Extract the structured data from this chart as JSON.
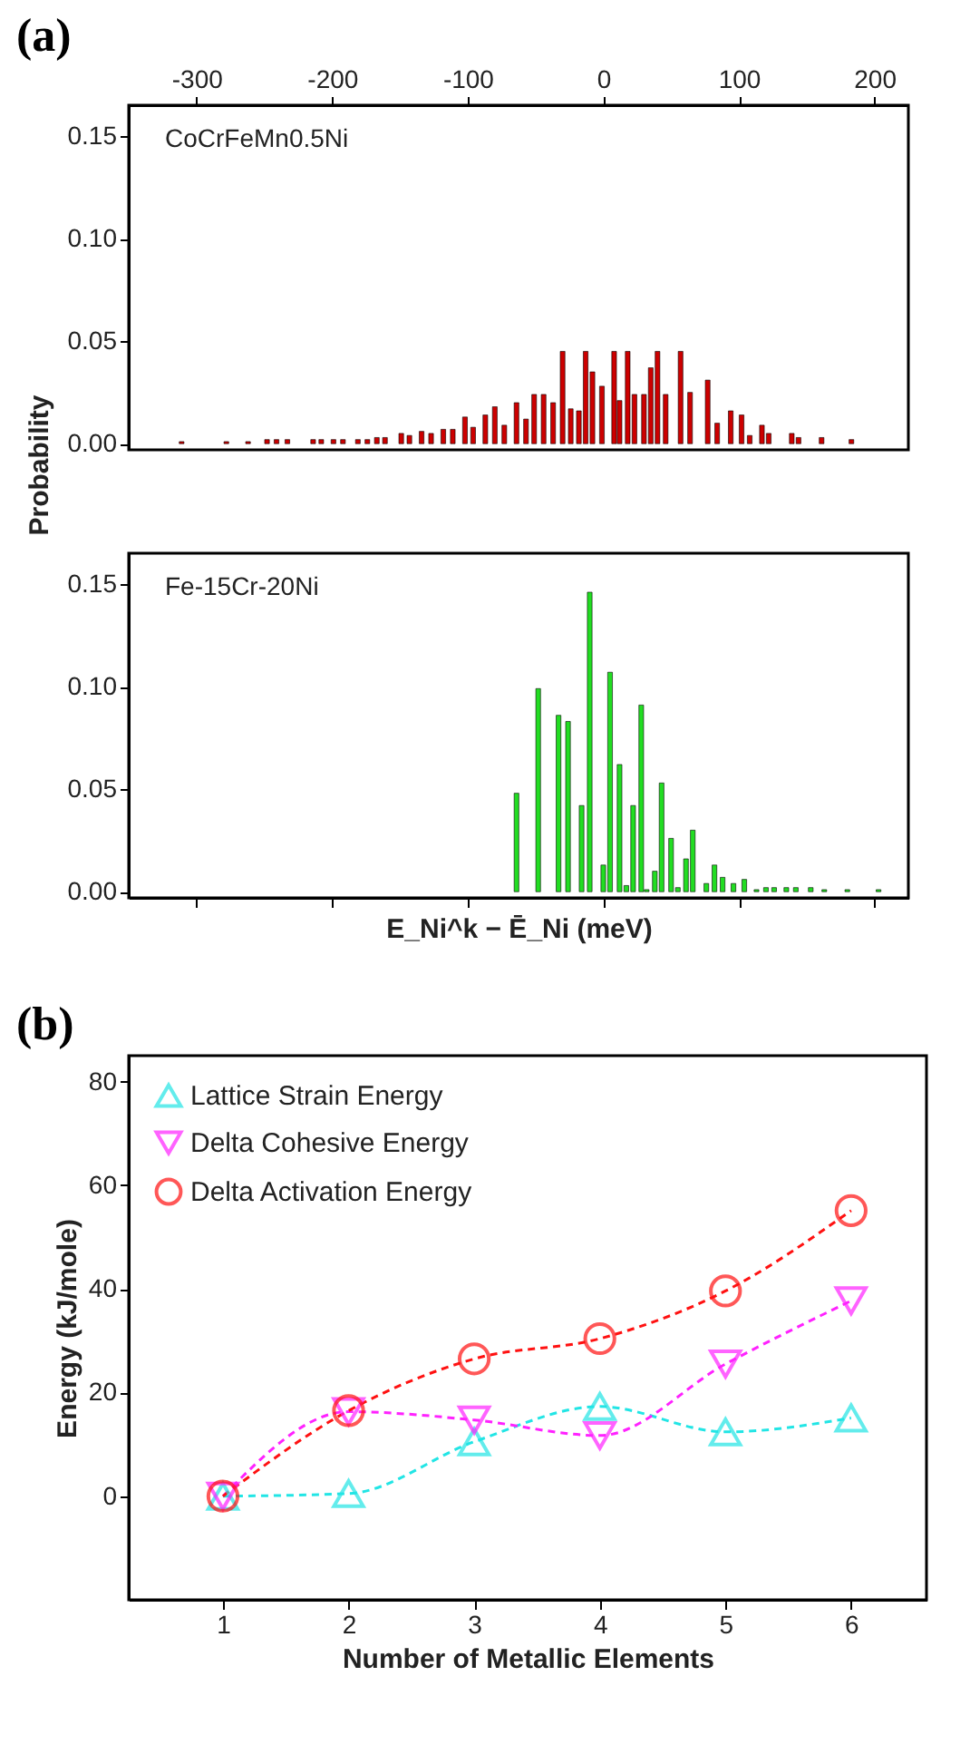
{
  "chart_data": [
    {
      "type": "bar",
      "title": "(a)",
      "ylabel": "Probability",
      "annotations": [
        "CoCrFeMn0.5Ni"
      ],
      "color": "#cc0000",
      "x": [
        -311,
        -278,
        -262,
        -248,
        -241,
        -233,
        -214,
        -208,
        -199,
        -192,
        -181,
        -174,
        -167,
        -161,
        -149,
        -143,
        -134,
        -127,
        -118,
        -111,
        -102,
        -96,
        -87,
        -80,
        -73,
        -64,
        -57,
        -51,
        -44,
        -37,
        -30,
        -24,
        -18,
        -13,
        -8,
        -1,
        8,
        12,
        18,
        23,
        30,
        35,
        40,
        46,
        57,
        64,
        77,
        84,
        94,
        102,
        108,
        117,
        122,
        139,
        144,
        161,
        183
      ],
      "values": [
        0.001,
        0.001,
        0.001,
        0.002,
        0.002,
        0.002,
        0.002,
        0.002,
        0.002,
        0.002,
        0.002,
        0.002,
        0.003,
        0.003,
        0.005,
        0.004,
        0.006,
        0.005,
        0.007,
        0.007,
        0.013,
        0.008,
        0.014,
        0.018,
        0.009,
        0.02,
        0.012,
        0.024,
        0.024,
        0.02,
        0.045,
        0.017,
        0.016,
        0.045,
        0.035,
        0.028,
        0.045,
        0.021,
        0.045,
        0.024,
        0.024,
        0.037,
        0.045,
        0.024,
        0.045,
        0.025,
        0.031,
        0.01,
        0.016,
        0.014,
        0.004,
        0.009,
        0.005,
        0.005,
        0.003,
        0.003,
        0.002
      ],
      "xlim": [
        -350,
        225
      ],
      "xticks": [
        -300,
        -200,
        -100,
        0,
        100,
        200
      ],
      "ylim": [
        -0.003,
        0.165
      ],
      "yticks": [
        {
          "value": 0,
          "label": "0.00"
        },
        {
          "value": 0.05,
          "label": "0.05"
        },
        {
          "value": 0.1,
          "label": "0.10"
        },
        {
          "value": 0.15,
          "label": "0.15"
        }
      ]
    },
    {
      "type": "bar",
      "xlabel": "E_Ni^k − Ē_Ni (meV)",
      "annotations": [
        "Fe-15Cr-20Ni"
      ],
      "color": "#22dd22",
      "x": [
        -64,
        -48,
        -33,
        -26,
        -16,
        -10,
        0,
        5,
        12,
        17,
        22,
        28,
        32,
        38,
        43,
        50,
        55,
        61,
        66,
        76,
        82,
        88,
        96,
        104,
        113,
        120,
        126,
        135,
        142,
        153,
        163,
        180,
        203
      ],
      "values": [
        0.048,
        0.099,
        0.086,
        0.083,
        0.042,
        0.146,
        0.013,
        0.107,
        0.062,
        0.003,
        0.042,
        0.091,
        0.001,
        0.01,
        0.053,
        0.026,
        0.002,
        0.016,
        0.03,
        0.004,
        0.013,
        0.007,
        0.004,
        0.006,
        0.001,
        0.002,
        0.002,
        0.002,
        0.002,
        0.002,
        0.001,
        0.001,
        0.001
      ],
      "xlim": [
        -350,
        225
      ],
      "xticks": [
        {
          "value": -300,
          "label": null
        },
        {
          "value": -200,
          "label": null
        },
        {
          "value": -100,
          "label": null
        },
        {
          "value": 0,
          "label": null
        },
        {
          "value": 100,
          "label": null
        },
        {
          "value": 200,
          "label": null
        }
      ],
      "tick_labels": "y",
      "ylim": [
        -0.003,
        0.165
      ],
      "yticks": [
        {
          "value": 0,
          "label": "0.00"
        },
        {
          "value": 0.05,
          "label": "0.05"
        },
        {
          "value": 0.1,
          "label": "0.10"
        },
        {
          "value": 0.15,
          "label": "0.15"
        }
      ]
    },
    {
      "type": "line",
      "title": "(b)",
      "xlabel": "Number of Metallic Elements",
      "ylabel": "Energy (kJ/mole)",
      "x": [
        1,
        2,
        3,
        4,
        5,
        6
      ],
      "xlim": [
        0.25,
        6.6
      ],
      "xticks": [
        1,
        2,
        3,
        4,
        5,
        6
      ],
      "ylim": [
        -20,
        85
      ],
      "yticks": [
        0,
        20,
        40,
        60,
        80
      ],
      "line_style": "dashed",
      "legend": "top left",
      "series": [
        {
          "name": "Lattice Strain Energy",
          "color": "#22e5e5",
          "marker": "triangle",
          "values": [
            0,
            0.5,
            10.5,
            17.3,
            12.4,
            15.1
          ]
        },
        {
          "name": "Delta Cohesive Energy",
          "color": "#ff22ff",
          "marker": "triangle-down",
          "values": [
            0,
            16.3,
            14.7,
            11.7,
            25.5,
            37.7
          ]
        },
        {
          "name": "Delta Activation Energy",
          "color": "#ff1111",
          "marker": "circle",
          "values": [
            0,
            16.5,
            26.5,
            30.4,
            39.6,
            55.1
          ]
        }
      ]
    }
  ]
}
